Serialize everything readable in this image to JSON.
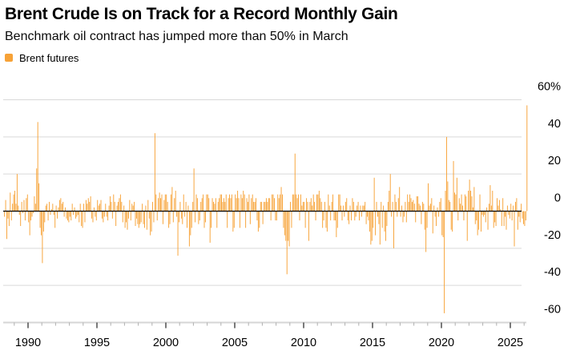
{
  "header": {
    "title": "Brent Crude Is on Track for a Record Monthly Gain",
    "subtitle": "Benchmark oil contract has jumped more than 50% in March"
  },
  "legend": {
    "label": "Brent futures",
    "swatch_color": "#F7A237"
  },
  "chart_data": {
    "type": "bar",
    "title": "Brent Crude Is on Track for a Record Monthly Gain",
    "subtitle": "Benchmark oil contract has jumped more than 50% in March",
    "series_name": "Brent futures",
    "unit": "percent monthly change",
    "frequency": "monthly",
    "x_start": "1988-04",
    "x_end": "2026-03",
    "ylim": [
      -60,
      60
    ],
    "grid": true,
    "legend_position": "top-left",
    "bar_color": "#F7A237",
    "grid_color": "#D9D9D9",
    "axis_base_color": "#D6D6D6",
    "zero_line_color": "#000000",
    "minor_tick_color": "#AFAFAF",
    "major_tick_color": "#404040",
    "y_ticks": [
      {
        "label": "60%",
        "value": 60
      },
      {
        "label": "40",
        "value": 40
      },
      {
        "label": "20",
        "value": 20
      },
      {
        "label": "0",
        "value": 0
      },
      {
        "label": "-20",
        "value": -20
      },
      {
        "label": "-40",
        "value": -40
      },
      {
        "label": "-60",
        "value": -60
      }
    ],
    "x_major_ticks": [
      1990,
      1995,
      2000,
      2005,
      2010,
      2015,
      2020,
      2025
    ],
    "x_minor_tick_years": {
      "from": 1989,
      "to": 2026
    },
    "values": [
      -3,
      6,
      -15,
      -4,
      -8,
      10,
      -5,
      4,
      9,
      11,
      4,
      20,
      3,
      -2,
      -8,
      5,
      -1,
      6,
      -5,
      7,
      9,
      -6,
      -13,
      -5,
      -3,
      -1,
      8,
      4,
      23,
      48,
      15,
      -9,
      -13,
      -28,
      -11,
      -6,
      3,
      4,
      -5,
      5,
      -2,
      1,
      4,
      -2,
      -9,
      3,
      -4,
      2,
      6,
      7,
      4,
      5,
      -3,
      2,
      -4,
      -5,
      -6,
      -3,
      -5,
      4,
      -2,
      2,
      -4,
      -3,
      -2,
      -6,
      4,
      -8,
      -9,
      4,
      -6,
      6,
      4,
      7,
      5,
      8,
      -4,
      -6,
      2,
      -3,
      -5,
      6,
      3,
      4,
      6,
      -4,
      -6,
      -3,
      4,
      -3,
      -5,
      3,
      8,
      5,
      -4,
      9,
      5,
      -8,
      3,
      5,
      7,
      9,
      5,
      -6,
      3,
      -9,
      -6,
      -10,
      -4,
      6,
      -5,
      4,
      3,
      5,
      -8,
      -4,
      -7,
      -9,
      -7,
      -6,
      4,
      -7,
      -9,
      3,
      -10,
      6,
      -4,
      -13,
      -11,
      5,
      -6,
      42,
      9,
      -5,
      7,
      10,
      7,
      9,
      -7,
      6,
      9,
      9,
      5,
      -9,
      -7,
      9,
      13,
      -6,
      7,
      11,
      -3,
      -24,
      -6,
      5,
      -4,
      -7,
      9,
      -3,
      5,
      -9,
      3,
      -19,
      -13,
      -9,
      5,
      23,
      -6,
      9,
      7,
      -7,
      -5,
      5,
      7,
      9,
      -9,
      -6,
      9,
      9,
      7,
      -17,
      -9,
      7,
      5,
      4,
      7,
      -9,
      5,
      7,
      9,
      9,
      5,
      7,
      5,
      9,
      -9,
      7,
      9,
      7,
      9,
      -11,
      -9,
      9,
      7,
      11,
      7,
      -9,
      9,
      7,
      11,
      9,
      -9,
      7,
      5,
      9,
      -7,
      7,
      9,
      5,
      5,
      7,
      -5,
      -11,
      -9,
      5,
      5,
      -7,
      5,
      5,
      7,
      5,
      7,
      7,
      -5,
      9,
      9,
      7,
      -5,
      -5,
      9,
      7,
      9,
      13,
      9,
      -9,
      -13,
      -16,
      -34,
      -16,
      -19,
      5,
      -9,
      9,
      9,
      31,
      9,
      7,
      9,
      -5,
      9,
      3,
      5,
      5,
      -9,
      7,
      5,
      -16,
      5,
      7,
      3,
      9,
      5,
      -5,
      9,
      9,
      11,
      7,
      5,
      -9,
      -5,
      5,
      -9,
      -11,
      9,
      3,
      -5,
      5,
      9,
      -5,
      -5,
      -14,
      -9,
      9,
      9,
      3,
      -5,
      3,
      -3,
      5,
      7,
      -5,
      -7,
      3,
      -5,
      7,
      5,
      -5,
      -3,
      3,
      5,
      -5,
      3,
      -3,
      3,
      3,
      5,
      -7,
      -3,
      -5,
      -11,
      -18,
      -16,
      -9,
      18,
      -13,
      5,
      -3,
      -7,
      -18,
      5,
      -9,
      3,
      -11,
      -16,
      -8,
      5,
      11,
      20,
      -3,
      5,
      -20,
      9,
      5,
      -3,
      7,
      13,
      -3,
      3,
      -6,
      -3,
      5,
      -6,
      9,
      5,
      9,
      7,
      5,
      6,
      4,
      -6,
      8,
      8,
      4,
      3,
      -7,
      5,
      4,
      -10,
      -22,
      -9,
      15,
      3,
      4,
      7,
      -12,
      3,
      -3,
      -8,
      2,
      -3,
      5,
      7,
      -13,
      -14,
      -55,
      11,
      40,
      16,
      6,
      5,
      -10,
      -11,
      27,
      10,
      9,
      18,
      -5,
      7,
      4,
      9,
      3,
      -5,
      9,
      8,
      -16,
      11,
      17,
      11,
      8,
      2,
      13,
      -7,
      -5,
      -13,
      -10,
      9,
      -11,
      -2,
      -3,
      -2,
      -6,
      2,
      -10,
      4,
      14,
      3,
      11,
      -9,
      -6,
      -8,
      7,
      3,
      6,
      1,
      -8,
      7,
      -8,
      -3,
      -10,
      3,
      -2,
      -4,
      4,
      -5,
      3,
      -19,
      5,
      7,
      -10,
      -3,
      -6,
      4,
      -4,
      -7,
      -8,
      -5,
      57
    ]
  }
}
